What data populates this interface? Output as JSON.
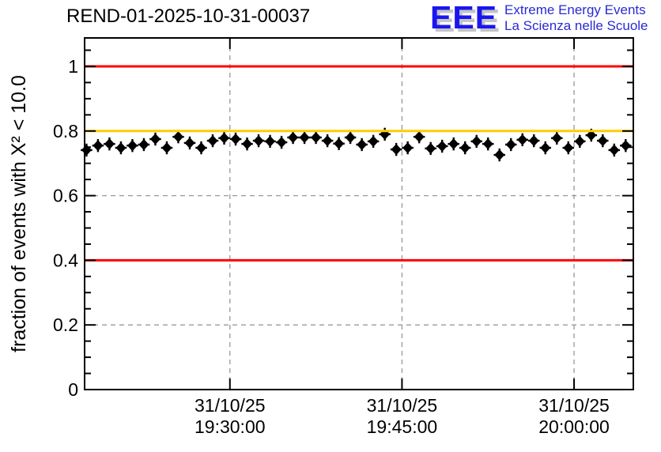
{
  "header": {
    "title": "REND-01-2025-10-31-00037",
    "logo": {
      "acronym": "EEE",
      "line1": "Extreme Energy Events",
      "line2": "La Scienza nelle Scuole"
    }
  },
  "colors": {
    "red_limit_line": "#ff0000",
    "orange_reference_line": "#ffcc00",
    "grid": "#999999",
    "marker": "#000000",
    "frame": "#000000",
    "logo_blue": "#1a16f0",
    "logo_shadow": "#c4c4c4",
    "logo_text_blue": "#2a2ad4"
  },
  "chart_data": {
    "type": "scatter",
    "title": "REND-01-2025-10-31-00037",
    "xlabel": "",
    "ylabel": "fraction of events with X² < 10.0",
    "ylim": [
      0,
      1.088
    ],
    "y_major_ticks": [
      {
        "value": 0,
        "label": "0"
      },
      {
        "value": 0.2,
        "label": "0.2"
      },
      {
        "value": 0.4,
        "label": "0.4"
      },
      {
        "value": 0.6,
        "label": "0.6"
      },
      {
        "value": 0.8,
        "label": "0.8"
      },
      {
        "value": 1,
        "label": "1"
      }
    ],
    "y_minor_step": 0.05,
    "x_domain": [
      "19:17:20",
      "20:05:10"
    ],
    "x_major_ticks": [
      {
        "time": "19:30:00",
        "label_date": "31/10/25",
        "label_time": "19:30:00"
      },
      {
        "time": "19:45:00",
        "label_date": "31/10/25",
        "label_time": "19:45:00"
      },
      {
        "time": "20:00:00",
        "label_date": "31/10/25",
        "label_time": "20:00:00"
      }
    ],
    "grid": {
      "on": true,
      "dash": "6,5",
      "color": "#999999"
    },
    "legend": null,
    "reference_lines": [
      {
        "y": 1.0,
        "color": "#ff0000",
        "meaning": "upper limit"
      },
      {
        "y": 0.8,
        "color": "#ffcc00",
        "meaning": "warning level"
      },
      {
        "y": 0.4,
        "color": "#ff0000",
        "meaning": "lower limit"
      }
    ],
    "series": [
      {
        "name": "fraction of events with chi2 < 10.0 vs time",
        "marker": "diamond",
        "color": "#000000",
        "x_error_seconds": 30,
        "y_error": 0.02,
        "points": [
          {
            "t": "19:17:30",
            "y": 0.741
          },
          {
            "t": "19:18:30",
            "y": 0.755
          },
          {
            "t": "19:19:30",
            "y": 0.76
          },
          {
            "t": "19:20:30",
            "y": 0.748
          },
          {
            "t": "19:21:30",
            "y": 0.755
          },
          {
            "t": "19:22:30",
            "y": 0.758
          },
          {
            "t": "19:23:30",
            "y": 0.775
          },
          {
            "t": "19:24:30",
            "y": 0.748
          },
          {
            "t": "19:25:30",
            "y": 0.782
          },
          {
            "t": "19:26:30",
            "y": 0.763
          },
          {
            "t": "19:27:30",
            "y": 0.748
          },
          {
            "t": "19:28:30",
            "y": 0.77
          },
          {
            "t": "19:29:30",
            "y": 0.778
          },
          {
            "t": "19:30:30",
            "y": 0.775
          },
          {
            "t": "19:31:30",
            "y": 0.76
          },
          {
            "t": "19:32:30",
            "y": 0.77
          },
          {
            "t": "19:33:30",
            "y": 0.768
          },
          {
            "t": "19:34:30",
            "y": 0.765
          },
          {
            "t": "19:35:30",
            "y": 0.78
          },
          {
            "t": "19:36:30",
            "y": 0.78
          },
          {
            "t": "19:37:30",
            "y": 0.78
          },
          {
            "t": "19:38:30",
            "y": 0.77
          },
          {
            "t": "19:39:30",
            "y": 0.761
          },
          {
            "t": "19:40:30",
            "y": 0.78
          },
          {
            "t": "19:41:30",
            "y": 0.758
          },
          {
            "t": "19:42:30",
            "y": 0.768
          },
          {
            "t": "19:43:30",
            "y": 0.79
          },
          {
            "t": "19:44:30",
            "y": 0.743
          },
          {
            "t": "19:45:30",
            "y": 0.748
          },
          {
            "t": "19:46:30",
            "y": 0.782
          },
          {
            "t": "19:47:30",
            "y": 0.746
          },
          {
            "t": "19:48:30",
            "y": 0.753
          },
          {
            "t": "19:49:30",
            "y": 0.76
          },
          {
            "t": "19:50:30",
            "y": 0.748
          },
          {
            "t": "19:51:30",
            "y": 0.768
          },
          {
            "t": "19:52:30",
            "y": 0.76
          },
          {
            "t": "19:53:30",
            "y": 0.726
          },
          {
            "t": "19:54:30",
            "y": 0.758
          },
          {
            "t": "19:55:30",
            "y": 0.773
          },
          {
            "t": "19:56:30",
            "y": 0.77
          },
          {
            "t": "19:57:30",
            "y": 0.748
          },
          {
            "t": "19:58:30",
            "y": 0.778
          },
          {
            "t": "19:59:30",
            "y": 0.748
          },
          {
            "t": "20:00:30",
            "y": 0.768
          },
          {
            "t": "20:01:30",
            "y": 0.787
          },
          {
            "t": "20:02:30",
            "y": 0.77
          },
          {
            "t": "20:03:30",
            "y": 0.741
          },
          {
            "t": "20:04:30",
            "y": 0.755
          }
        ]
      }
    ]
  }
}
